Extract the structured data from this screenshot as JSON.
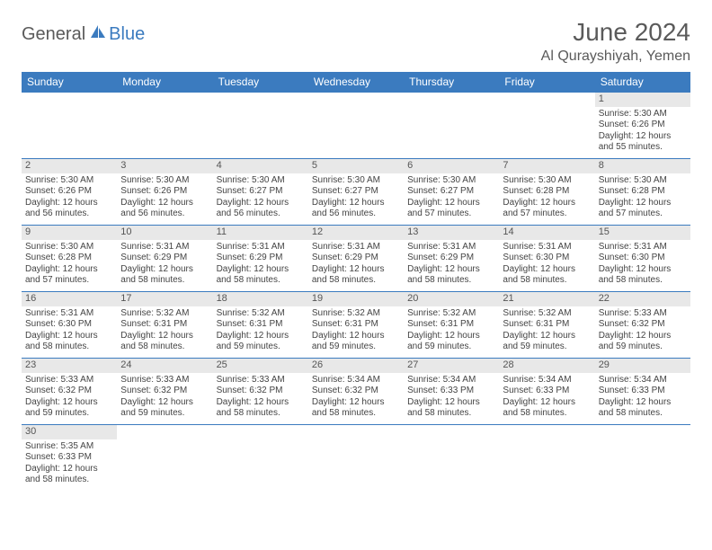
{
  "logo": {
    "part1": "General",
    "part2": "Blue"
  },
  "title": "June 2024",
  "location": "Al Qurayshiyah, Yemen",
  "colors": {
    "header_bg": "#3b7bbf",
    "header_fg": "#ffffff",
    "daynum_bg": "#e8e8e8",
    "text": "#555555",
    "border": "#3b7bbf"
  },
  "weekdays": [
    "Sunday",
    "Monday",
    "Tuesday",
    "Wednesday",
    "Thursday",
    "Friday",
    "Saturday"
  ],
  "weeks": [
    [
      null,
      null,
      null,
      null,
      null,
      null,
      {
        "n": "1",
        "sr": "5:30 AM",
        "ss": "6:26 PM",
        "dl": "12 hours and 55 minutes."
      }
    ],
    [
      {
        "n": "2",
        "sr": "5:30 AM",
        "ss": "6:26 PM",
        "dl": "12 hours and 56 minutes."
      },
      {
        "n": "3",
        "sr": "5:30 AM",
        "ss": "6:26 PM",
        "dl": "12 hours and 56 minutes."
      },
      {
        "n": "4",
        "sr": "5:30 AM",
        "ss": "6:27 PM",
        "dl": "12 hours and 56 minutes."
      },
      {
        "n": "5",
        "sr": "5:30 AM",
        "ss": "6:27 PM",
        "dl": "12 hours and 56 minutes."
      },
      {
        "n": "6",
        "sr": "5:30 AM",
        "ss": "6:27 PM",
        "dl": "12 hours and 57 minutes."
      },
      {
        "n": "7",
        "sr": "5:30 AM",
        "ss": "6:28 PM",
        "dl": "12 hours and 57 minutes."
      },
      {
        "n": "8",
        "sr": "5:30 AM",
        "ss": "6:28 PM",
        "dl": "12 hours and 57 minutes."
      }
    ],
    [
      {
        "n": "9",
        "sr": "5:30 AM",
        "ss": "6:28 PM",
        "dl": "12 hours and 57 minutes."
      },
      {
        "n": "10",
        "sr": "5:31 AM",
        "ss": "6:29 PM",
        "dl": "12 hours and 58 minutes."
      },
      {
        "n": "11",
        "sr": "5:31 AM",
        "ss": "6:29 PM",
        "dl": "12 hours and 58 minutes."
      },
      {
        "n": "12",
        "sr": "5:31 AM",
        "ss": "6:29 PM",
        "dl": "12 hours and 58 minutes."
      },
      {
        "n": "13",
        "sr": "5:31 AM",
        "ss": "6:29 PM",
        "dl": "12 hours and 58 minutes."
      },
      {
        "n": "14",
        "sr": "5:31 AM",
        "ss": "6:30 PM",
        "dl": "12 hours and 58 minutes."
      },
      {
        "n": "15",
        "sr": "5:31 AM",
        "ss": "6:30 PM",
        "dl": "12 hours and 58 minutes."
      }
    ],
    [
      {
        "n": "16",
        "sr": "5:31 AM",
        "ss": "6:30 PM",
        "dl": "12 hours and 58 minutes."
      },
      {
        "n": "17",
        "sr": "5:32 AM",
        "ss": "6:31 PM",
        "dl": "12 hours and 58 minutes."
      },
      {
        "n": "18",
        "sr": "5:32 AM",
        "ss": "6:31 PM",
        "dl": "12 hours and 59 minutes."
      },
      {
        "n": "19",
        "sr": "5:32 AM",
        "ss": "6:31 PM",
        "dl": "12 hours and 59 minutes."
      },
      {
        "n": "20",
        "sr": "5:32 AM",
        "ss": "6:31 PM",
        "dl": "12 hours and 59 minutes."
      },
      {
        "n": "21",
        "sr": "5:32 AM",
        "ss": "6:31 PM",
        "dl": "12 hours and 59 minutes."
      },
      {
        "n": "22",
        "sr": "5:33 AM",
        "ss": "6:32 PM",
        "dl": "12 hours and 59 minutes."
      }
    ],
    [
      {
        "n": "23",
        "sr": "5:33 AM",
        "ss": "6:32 PM",
        "dl": "12 hours and 59 minutes."
      },
      {
        "n": "24",
        "sr": "5:33 AM",
        "ss": "6:32 PM",
        "dl": "12 hours and 59 minutes."
      },
      {
        "n": "25",
        "sr": "5:33 AM",
        "ss": "6:32 PM",
        "dl": "12 hours and 58 minutes."
      },
      {
        "n": "26",
        "sr": "5:34 AM",
        "ss": "6:32 PM",
        "dl": "12 hours and 58 minutes."
      },
      {
        "n": "27",
        "sr": "5:34 AM",
        "ss": "6:33 PM",
        "dl": "12 hours and 58 minutes."
      },
      {
        "n": "28",
        "sr": "5:34 AM",
        "ss": "6:33 PM",
        "dl": "12 hours and 58 minutes."
      },
      {
        "n": "29",
        "sr": "5:34 AM",
        "ss": "6:33 PM",
        "dl": "12 hours and 58 minutes."
      }
    ],
    [
      {
        "n": "30",
        "sr": "5:35 AM",
        "ss": "6:33 PM",
        "dl": "12 hours and 58 minutes."
      },
      null,
      null,
      null,
      null,
      null,
      null
    ]
  ],
  "labels": {
    "sunrise": "Sunrise:",
    "sunset": "Sunset:",
    "daylight": "Daylight:"
  }
}
